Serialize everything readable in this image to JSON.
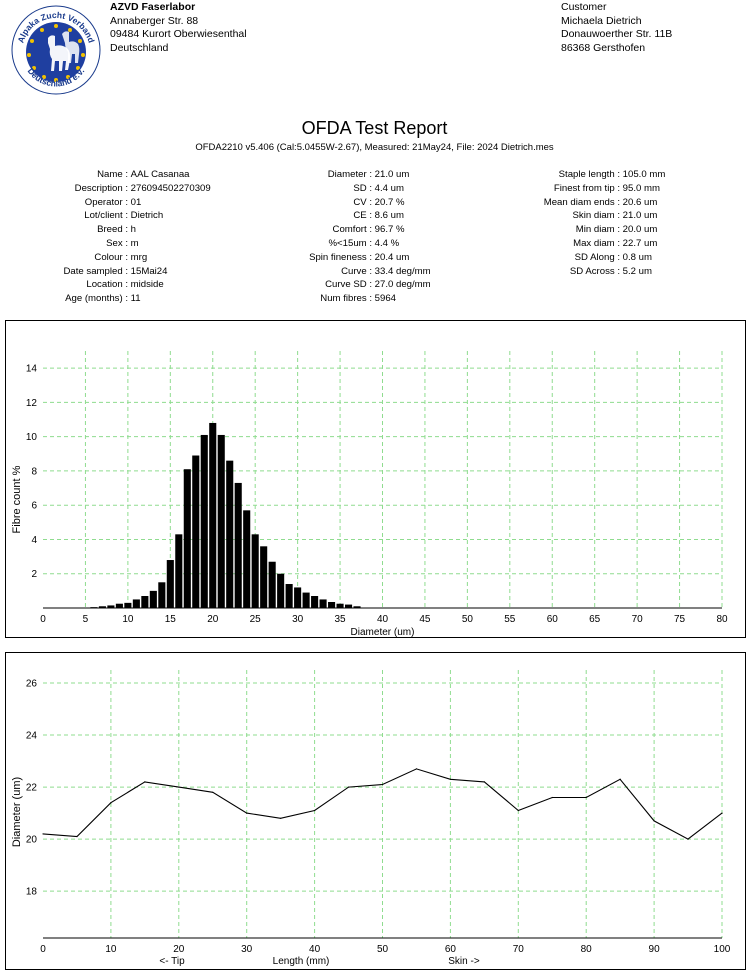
{
  "lab": {
    "logo_text_top": "Alpaka Zucht Verband",
    "logo_text_bottom": "Deutschland e.V.",
    "name": "AZVD Faserlabor",
    "street": "Annaberger Str. 88",
    "city": "09484 Kurort Oberwiesenthal",
    "country": "Deutschland"
  },
  "customer": {
    "heading": "Customer",
    "name": "Michaela Dietrich",
    "street": "Donauwoerther Str. 11B",
    "city": "86368 Gersthofen"
  },
  "report": {
    "title": "OFDA Test Report",
    "subtitle": "OFDA2210 v5.406 (Cal:5.0455W-2.67), Measured: 21May24, File: 2024 Dietrich.mes"
  },
  "info_left": [
    {
      "label": "Name :",
      "value": "AAL Casanaa"
    },
    {
      "label": "Description :",
      "value": "276094502270309"
    },
    {
      "label": "Operator :",
      "value": "01"
    },
    {
      "label": "Lot/client :",
      "value": "Dietrich"
    },
    {
      "label": "Breed :",
      "value": "h"
    },
    {
      "label": "Sex :",
      "value": "m"
    },
    {
      "label": "Colour :",
      "value": "mrg"
    },
    {
      "label": "Date sampled :",
      "value": "15Mai24"
    },
    {
      "label": "Location :",
      "value": "midside"
    },
    {
      "label": "Age (months) :",
      "value": " 11"
    }
  ],
  "info_mid": [
    {
      "label": "Diameter :",
      "value": "21.0 um"
    },
    {
      "label": "SD :",
      "value": "4.4 um"
    },
    {
      "label": "CV :",
      "value": "20.7 %"
    },
    {
      "label": "CE :",
      "value": "8.6 um"
    },
    {
      "label": "Comfort :",
      "value": "96.7 %"
    },
    {
      "label": "%<15um :",
      "value": "4.4 %"
    },
    {
      "label": "Spin fineness :",
      "value": "20.4 um"
    },
    {
      "label": "Curve :",
      "value": "33.4 deg/mm"
    },
    {
      "label": "Curve SD :",
      "value": "27.0 deg/mm"
    },
    {
      "label": "Num fibres :",
      "value": " 5964"
    }
  ],
  "info_right": [
    {
      "label": "Staple length :",
      "value": "105.0 mm"
    },
    {
      "label": "Finest from tip :",
      "value": "95.0 mm"
    },
    {
      "label": "Mean diam ends :",
      "value": "20.6 um"
    },
    {
      "label": "Skin diam :",
      "value": "21.0 um"
    },
    {
      "label": "Min diam :",
      "value": "20.0 um"
    },
    {
      "label": "Max diam :",
      "value": "22.7 um"
    },
    {
      "label": "SD Along :",
      "value": "0.8 um"
    },
    {
      "label": "SD Across :",
      "value": "5.2 um"
    }
  ],
  "colors": {
    "grid": "#8fdc8f",
    "bar": "#000000",
    "line": "#000000"
  },
  "chart_data": [
    {
      "type": "bar",
      "xlabel": "Diameter (um)",
      "ylabel": "Fibre count %",
      "xlim": [
        0,
        80
      ],
      "ylim": [
        0,
        15
      ],
      "xticks": [
        0,
        5,
        10,
        15,
        20,
        25,
        30,
        35,
        40,
        45,
        50,
        55,
        60,
        65,
        70,
        75,
        80
      ],
      "yticks": [
        2,
        4,
        6,
        8,
        10,
        12,
        14
      ],
      "grid": true,
      "x": [
        6,
        7,
        8,
        9,
        10,
        11,
        12,
        13,
        14,
        15,
        16,
        17,
        18,
        19,
        20,
        21,
        22,
        23,
        24,
        25,
        26,
        27,
        28,
        29,
        30,
        31,
        32,
        33,
        34,
        35,
        36,
        37
      ],
      "values": [
        0.05,
        0.1,
        0.15,
        0.25,
        0.3,
        0.5,
        0.7,
        1.0,
        1.5,
        2.8,
        4.3,
        8.1,
        8.9,
        10.1,
        10.8,
        10.1,
        8.6,
        7.3,
        5.7,
        4.3,
        3.6,
        2.7,
        2.0,
        1.4,
        1.2,
        0.9,
        0.7,
        0.5,
        0.35,
        0.25,
        0.2,
        0.1
      ]
    },
    {
      "type": "line",
      "xlabel": "Length (mm)",
      "xlabel_left": "<- Tip",
      "xlabel_right": "Skin ->",
      "ylabel": "Diameter (um)",
      "xlim": [
        0,
        100
      ],
      "ylim": [
        16.2,
        26.5
      ],
      "xticks": [
        0,
        10,
        20,
        30,
        40,
        50,
        60,
        70,
        80,
        90,
        100
      ],
      "yticks": [
        18,
        20,
        22,
        24,
        26
      ],
      "grid": true,
      "x": [
        0,
        5,
        10,
        15,
        20,
        25,
        30,
        35,
        40,
        45,
        50,
        55,
        60,
        65,
        70,
        75,
        80,
        85,
        90,
        95,
        100
      ],
      "y": [
        20.2,
        20.1,
        21.4,
        22.2,
        22.0,
        21.8,
        21.0,
        20.8,
        21.1,
        22.0,
        22.1,
        22.7,
        22.3,
        22.2,
        21.1,
        21.6,
        21.6,
        22.3,
        20.7,
        20.0,
        21.0
      ]
    }
  ]
}
